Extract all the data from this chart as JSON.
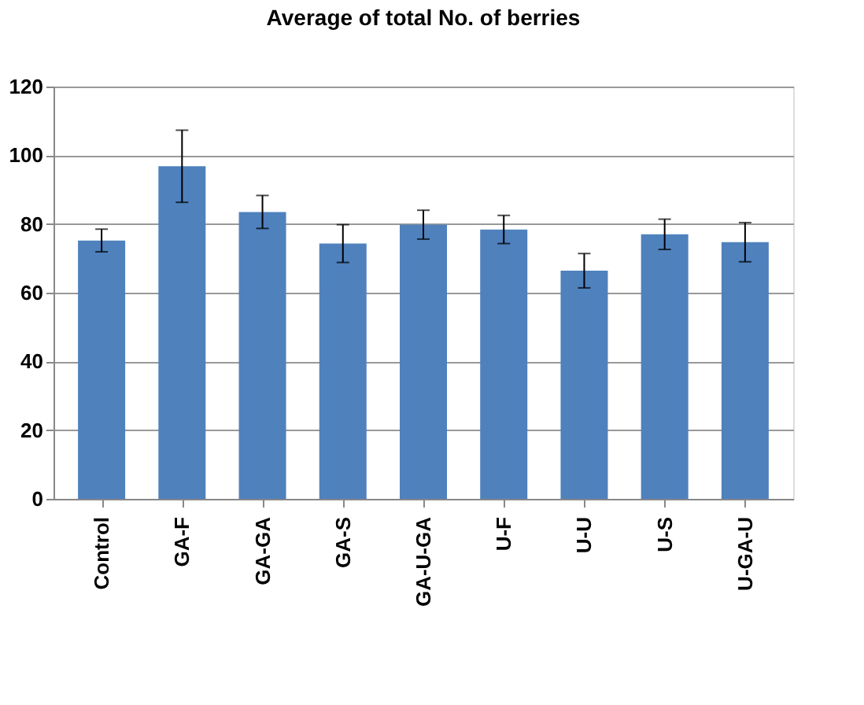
{
  "chart_data": {
    "type": "bar",
    "title": "Average of total No. of berries",
    "categories": [
      "Control",
      "GA-F",
      "GA-GA",
      "GA-S",
      "GA-U-GA",
      "U-F",
      "U-U",
      "U-S",
      "U-GA-U"
    ],
    "values": [
      75.2,
      96.8,
      83.5,
      74.3,
      79.8,
      78.4,
      66.4,
      77.0,
      74.7
    ],
    "errors": [
      3.3,
      10.5,
      4.8,
      5.5,
      4.2,
      4.1,
      5,
      4.4,
      5.7
    ],
    "color": "#4f81bd",
    "ylim": [
      0,
      120
    ],
    "yticks": [
      0,
      20,
      40,
      60,
      80,
      100,
      120
    ],
    "grid": "y"
  }
}
